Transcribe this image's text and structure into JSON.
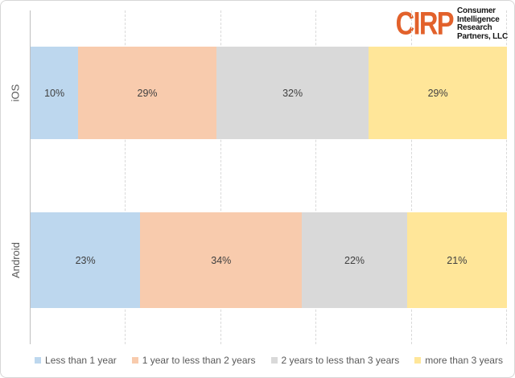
{
  "logo": {
    "brand": "CIRP",
    "brand_color": "#E2612B",
    "lines": [
      "Consumer",
      "Intelligence",
      "Research",
      "Partners, LLC"
    ]
  },
  "chart_data": {
    "type": "bar",
    "orientation": "horizontal",
    "stacked": true,
    "title": "",
    "categories": [
      "iOS",
      "Android"
    ],
    "colors": [
      "#BDD7EE",
      "#F8CBAD",
      "#D9D9D9",
      "#FFE699"
    ],
    "series": [
      {
        "name": "Less than 1 year",
        "values": [
          10,
          23
        ]
      },
      {
        "name": "1 year to less than 2 years",
        "values": [
          29,
          34
        ]
      },
      {
        "name": "2 years to less than 3 years",
        "values": [
          32,
          22
        ]
      },
      {
        "name": "more than 3 years",
        "values": [
          29,
          21
        ]
      }
    ],
    "value_suffix": "%",
    "xlim": [
      0,
      100
    ],
    "gridlines_percent": [
      20,
      40,
      60,
      80,
      100
    ],
    "gridline_style": "dashed",
    "axis_line_color": "#BFBFBF",
    "gridline_color": "#D9D9D9",
    "label_color": "#404040",
    "legend_position": "bottom"
  }
}
